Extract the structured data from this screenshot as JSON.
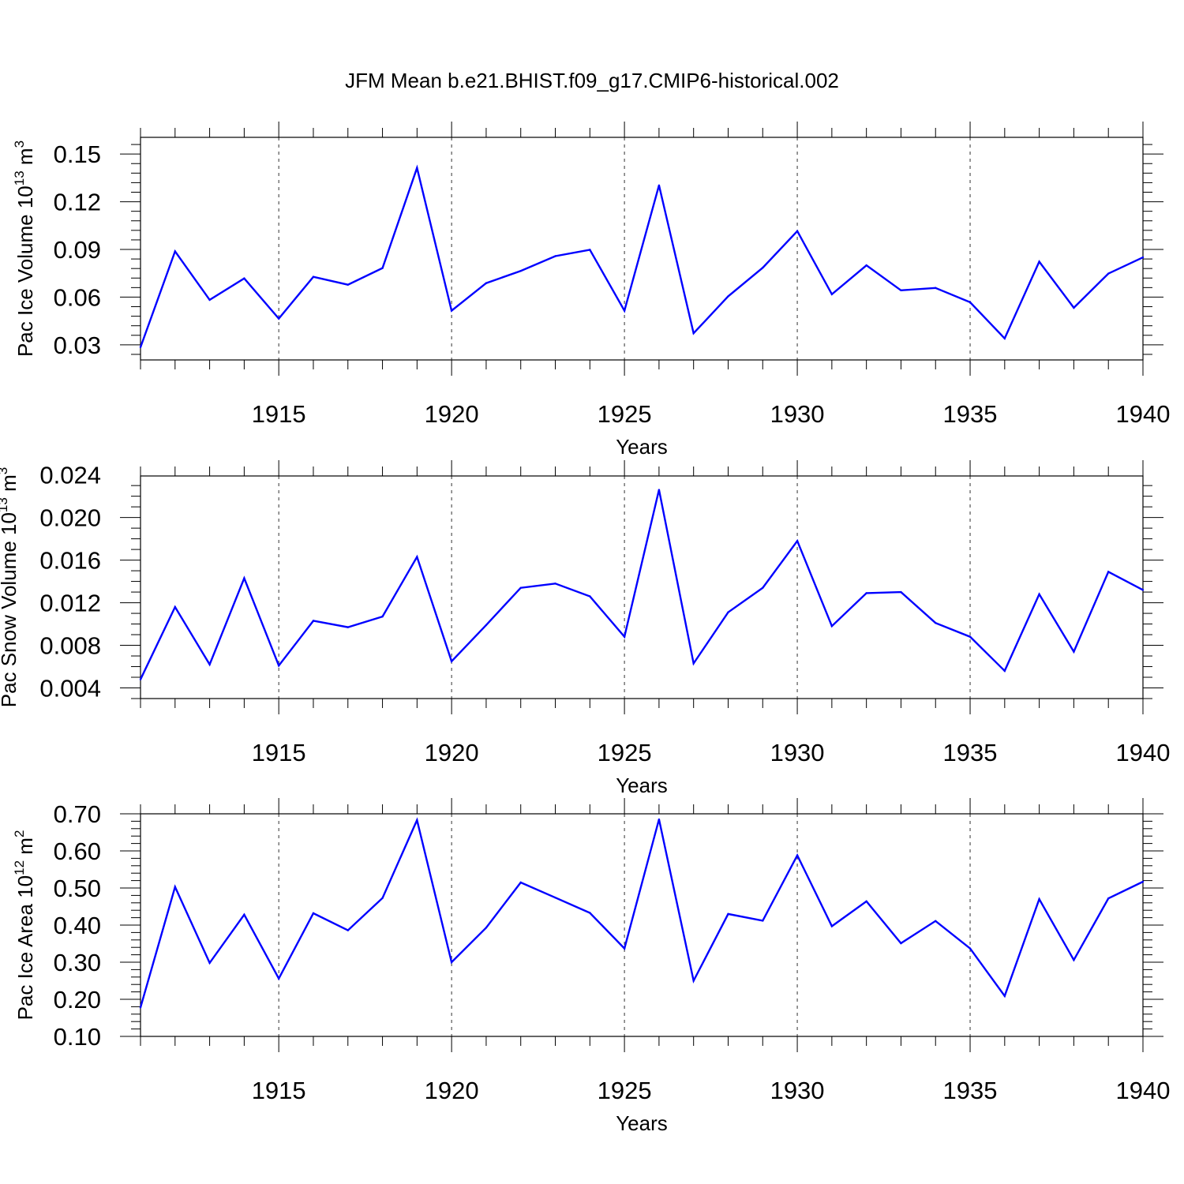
{
  "title": "JFM Mean b.e21.BHIST.f09_g17.CMIP6-historical.002",
  "colors": {
    "line": "#0000ff",
    "frame": "#000000",
    "background": "#ffffff"
  },
  "chart_data": [
    {
      "type": "line",
      "title": "",
      "xlabel": "Years",
      "ylabel": "Pac Ice Volume 10",
      "ylabel_exponent": "13",
      "ylabel_unit": " m",
      "ylabel_unit_exponent": "3",
      "xlim": [
        1911,
        1940
      ],
      "ylim": [
        0.0205,
        0.1605
      ],
      "xticks": [
        "1915",
        "1920",
        "1925",
        "1930",
        "1935",
        "1940"
      ],
      "yticks": [
        "0.03",
        "0.06",
        "0.09",
        "0.12",
        "0.15"
      ],
      "grid": "vertical dashed at major x ticks",
      "x": [
        1911,
        1912,
        1913,
        1914,
        1915,
        1916,
        1917,
        1918,
        1919,
        1920,
        1921,
        1922,
        1923,
        1924,
        1925,
        1926,
        1927,
        1928,
        1929,
        1930,
        1931,
        1932,
        1933,
        1934,
        1935,
        1936,
        1937,
        1938,
        1939,
        1940
      ],
      "series": [
        {
          "values": [
            0.0285,
            0.0888,
            0.0583,
            0.0718,
            0.0465,
            0.0728,
            0.0678,
            0.0783,
            0.1413,
            0.0515,
            0.0688,
            0.0765,
            0.0858,
            0.0898,
            0.0515,
            0.1303,
            0.0373,
            0.0605,
            0.0785,
            0.1015,
            0.0618,
            0.08,
            0.0643,
            0.0658,
            0.0568,
            0.034,
            0.0823,
            0.0533,
            0.0748,
            0.085
          ]
        }
      ]
    },
    {
      "type": "line",
      "title": "",
      "xlabel": "Years",
      "ylabel": "Pac Snow Volume 10",
      "ylabel_exponent": "13",
      "ylabel_unit": " m",
      "ylabel_unit_exponent": "3",
      "xlim": [
        1911,
        1940
      ],
      "ylim": [
        0.003,
        0.0239
      ],
      "xticks": [
        "1915",
        "1920",
        "1925",
        "1930",
        "1935",
        "1940"
      ],
      "yticks": [
        "0.004",
        "0.008",
        "0.012",
        "0.016",
        "0.020",
        "0.024"
      ],
      "grid": "vertical dashed at major x ticks",
      "x": [
        1911,
        1912,
        1913,
        1914,
        1915,
        1916,
        1917,
        1918,
        1919,
        1920,
        1921,
        1922,
        1923,
        1924,
        1925,
        1926,
        1927,
        1928,
        1929,
        1930,
        1931,
        1932,
        1933,
        1934,
        1935,
        1936,
        1937,
        1938,
        1939,
        1940
      ],
      "series": [
        {
          "values": [
            0.0048,
            0.0116,
            0.0062,
            0.0143,
            0.0061,
            0.0103,
            0.0097,
            0.0107,
            0.0163,
            0.0065,
            0.0099,
            0.0134,
            0.0138,
            0.0126,
            0.0088,
            0.0226,
            0.0063,
            0.0111,
            0.0134,
            0.0178,
            0.0098,
            0.0129,
            0.013,
            0.0101,
            0.0088,
            0.0056,
            0.0128,
            0.0074,
            0.0149,
            0.0132
          ]
        }
      ]
    },
    {
      "type": "line",
      "title": "",
      "xlabel": "Years",
      "ylabel": "Pac Ice Area 10",
      "ylabel_exponent": "12",
      "ylabel_unit": " m",
      "ylabel_unit_exponent": "2",
      "xlim": [
        1911,
        1940
      ],
      "ylim": [
        0.1,
        0.7
      ],
      "xticks": [
        "1915",
        "1920",
        "1925",
        "1930",
        "1935",
        "1940"
      ],
      "yticks": [
        "0.10",
        "0.20",
        "0.30",
        "0.40",
        "0.50",
        "0.60",
        "0.70"
      ],
      "grid": "vertical dashed at major x ticks",
      "x": [
        1911,
        1912,
        1913,
        1914,
        1915,
        1916,
        1917,
        1918,
        1919,
        1920,
        1921,
        1922,
        1923,
        1924,
        1925,
        1926,
        1927,
        1928,
        1929,
        1930,
        1931,
        1932,
        1933,
        1934,
        1935,
        1936,
        1937,
        1938,
        1939,
        1940
      ],
      "series": [
        {
          "values": [
            0.178,
            0.503,
            0.298,
            0.428,
            0.256,
            0.432,
            0.386,
            0.473,
            0.683,
            0.3,
            0.393,
            0.515,
            0.474,
            0.433,
            0.337,
            0.685,
            0.25,
            0.43,
            0.412,
            0.588,
            0.397,
            0.464,
            0.351,
            0.411,
            0.337,
            0.209,
            0.47,
            0.306,
            0.472,
            0.517
          ]
        }
      ]
    }
  ]
}
